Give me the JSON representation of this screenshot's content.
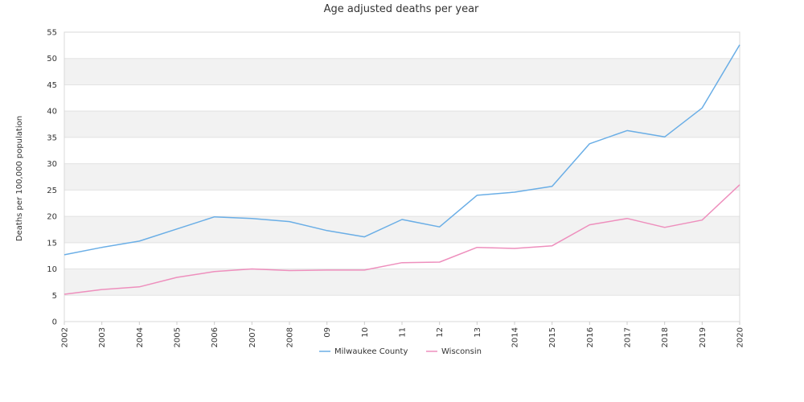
{
  "chart_data": {
    "type": "line",
    "title": "Age adjusted deaths per year",
    "xlabel": "",
    "ylabel": "Deaths per 100,000 population",
    "categories": [
      "2002",
      "2003",
      "2004",
      "2005",
      "2006",
      "2007",
      "2008",
      "09",
      "10",
      "11",
      "12",
      "13",
      "2014",
      "2015",
      "2016",
      "2017",
      "2018",
      "2019",
      "2020"
    ],
    "ylim": [
      0,
      55
    ],
    "yticks": [
      0,
      5,
      10,
      15,
      20,
      25,
      30,
      35,
      40,
      45,
      50,
      55
    ],
    "grid": "alternating horizontal bands",
    "legend_position": "bottom-center",
    "series": [
      {
        "name": "Milwaukee County",
        "color": "#6aaee6",
        "values": [
          12.7,
          14.1,
          15.3,
          17.6,
          19.9,
          19.6,
          19.0,
          17.3,
          16.1,
          19.4,
          18.0,
          24.0,
          24.6,
          25.7,
          33.8,
          36.3,
          35.1,
          40.6,
          52.6
        ]
      },
      {
        "name": "Wisconsin",
        "color": "#ee8fbd",
        "values": [
          5.2,
          6.1,
          6.6,
          8.4,
          9.5,
          10.0,
          9.7,
          9.8,
          9.8,
          11.2,
          11.3,
          14.1,
          13.9,
          14.4,
          18.4,
          19.6,
          17.9,
          19.3,
          26.0
        ]
      }
    ]
  }
}
